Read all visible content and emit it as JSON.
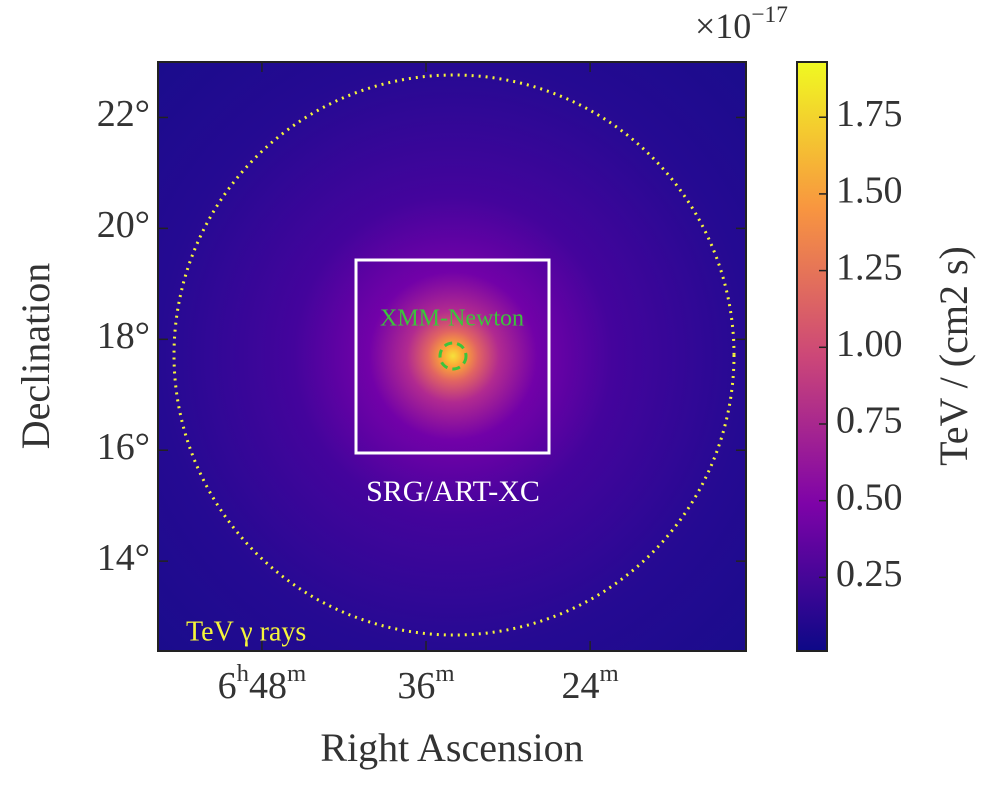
{
  "chart_data": {
    "type": "skymap",
    "xlabel": "Right Ascension",
    "ylabel": "Declination",
    "xlim": [
      103.9,
      93.15
    ],
    "xticks": [
      {
        "value": 102,
        "label": "6h48m"
      },
      {
        "value": 99,
        "label": "36m"
      },
      {
        "value": 96,
        "label": "24m"
      }
    ],
    "ylim": [
      12.38,
      23.0
    ],
    "yticks": [
      {
        "value": 14,
        "label": "14°"
      },
      {
        "value": 16,
        "label": "16°"
      },
      {
        "value": 18,
        "label": "18°"
      },
      {
        "value": 20,
        "label": "20°"
      },
      {
        "value": 22,
        "label": "22°"
      }
    ],
    "colorbar": {
      "label": "TeV / (cm2 s)",
      "multiplier": "×10−17",
      "colormap": [
        "#0d0887",
        "#7e03a8",
        "#cc4778",
        "#f89540",
        "#f0f921"
      ],
      "clim": [
        0.01,
        1.93
      ],
      "ticks": [
        0.25,
        {
          "value": 0.5,
          "label": "0.50"
        },
        0.75,
        {
          "value": 1,
          "label": "1.00"
        },
        1.25,
        {
          "value": 1.5,
          "label": "1.50"
        },
        1.75
      ]
    },
    "annotations": {
      "xmm": "XMM-Newton",
      "srg": "SRG/ART-XC",
      "tev": "TeV γ rays"
    }
  }
}
